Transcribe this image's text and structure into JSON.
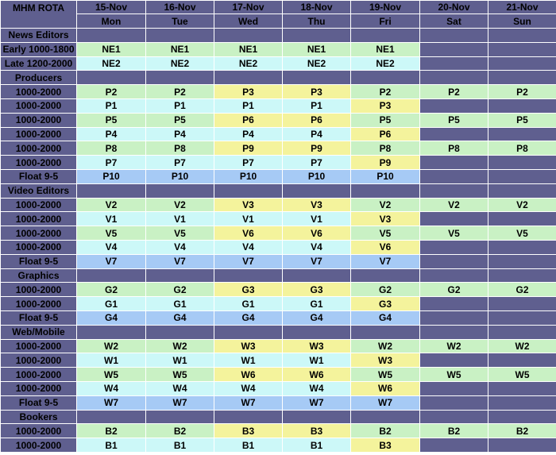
{
  "title": "MHM ROTA",
  "dates": [
    "15-Nov",
    "16-Nov",
    "17-Nov",
    "18-Nov",
    "19-Nov",
    "20-Nov",
    "21-Nov"
  ],
  "days": [
    "Mon",
    "Tue",
    "Wed",
    "Thu",
    "Fri",
    "Sat",
    "Sun"
  ],
  "colors": {
    "header": "#5f5f8f",
    "section": "#5f5f8f",
    "green": "#c9f1c4",
    "cyan": "#ccf8f8",
    "yellow": "#f4f39c",
    "blue": "#a6caf5",
    "empty": "#5f5f8f"
  },
  "rows": [
    {
      "label": "News Editors",
      "section": true
    },
    {
      "label": "Early 1000-1800",
      "cells": [
        [
          "NE1",
          "g"
        ],
        [
          "NE1",
          "g"
        ],
        [
          "NE1",
          "g"
        ],
        [
          "NE1",
          "g"
        ],
        [
          "NE1",
          "g"
        ],
        [
          "",
          "n"
        ],
        [
          "",
          "n"
        ]
      ]
    },
    {
      "label": "Late 1200-2000",
      "cells": [
        [
          "NE2",
          "c"
        ],
        [
          "NE2",
          "c"
        ],
        [
          "NE2",
          "c"
        ],
        [
          "NE2",
          "c"
        ],
        [
          "NE2",
          "c"
        ],
        [
          "",
          "n"
        ],
        [
          "",
          "n"
        ]
      ]
    },
    {
      "label": "Producers",
      "section": true
    },
    {
      "label": "1000-2000",
      "cells": [
        [
          "P2",
          "g"
        ],
        [
          "P2",
          "g"
        ],
        [
          "P3",
          "y"
        ],
        [
          "P3",
          "y"
        ],
        [
          "P2",
          "g"
        ],
        [
          "P2",
          "g"
        ],
        [
          "P2",
          "g"
        ]
      ]
    },
    {
      "label": "1000-2000",
      "cells": [
        [
          "P1",
          "c"
        ],
        [
          "P1",
          "c"
        ],
        [
          "P1",
          "c"
        ],
        [
          "P1",
          "c"
        ],
        [
          "P3",
          "y"
        ],
        [
          "",
          "n"
        ],
        [
          "",
          "n"
        ]
      ]
    },
    {
      "label": "1000-2000",
      "cells": [
        [
          "P5",
          "g"
        ],
        [
          "P5",
          "g"
        ],
        [
          "P6",
          "y"
        ],
        [
          "P6",
          "y"
        ],
        [
          "P5",
          "g"
        ],
        [
          "P5",
          "g"
        ],
        [
          "P5",
          "g"
        ]
      ]
    },
    {
      "label": "1000-2000",
      "cells": [
        [
          "P4",
          "c"
        ],
        [
          "P4",
          "c"
        ],
        [
          "P4",
          "c"
        ],
        [
          "P4",
          "c"
        ],
        [
          "P6",
          "y"
        ],
        [
          "",
          "n"
        ],
        [
          "",
          "n"
        ]
      ]
    },
    {
      "label": "1000-2000",
      "cells": [
        [
          "P8",
          "g"
        ],
        [
          "P8",
          "g"
        ],
        [
          "P9",
          "y"
        ],
        [
          "P9",
          "y"
        ],
        [
          "P8",
          "g"
        ],
        [
          "P8",
          "g"
        ],
        [
          "P8",
          "g"
        ]
      ]
    },
    {
      "label": "1000-2000",
      "cells": [
        [
          "P7",
          "c"
        ],
        [
          "P7",
          "c"
        ],
        [
          "P7",
          "c"
        ],
        [
          "P7",
          "c"
        ],
        [
          "P9",
          "y"
        ],
        [
          "",
          "n"
        ],
        [
          "",
          "n"
        ]
      ]
    },
    {
      "label": "Float 9-5",
      "cells": [
        [
          "P10",
          "b"
        ],
        [
          "P10",
          "b"
        ],
        [
          "P10",
          "b"
        ],
        [
          "P10",
          "b"
        ],
        [
          "P10",
          "b"
        ],
        [
          "",
          "n"
        ],
        [
          "",
          "n"
        ]
      ]
    },
    {
      "label": "Video Editors",
      "section": true
    },
    {
      "label": "1000-2000",
      "cells": [
        [
          "V2",
          "g"
        ],
        [
          "V2",
          "g"
        ],
        [
          "V3",
          "y"
        ],
        [
          "V3",
          "y"
        ],
        [
          "V2",
          "g"
        ],
        [
          "V2",
          "g"
        ],
        [
          "V2",
          "g"
        ]
      ]
    },
    {
      "label": "1000-2000",
      "cells": [
        [
          "V1",
          "c"
        ],
        [
          "V1",
          "c"
        ],
        [
          "V1",
          "c"
        ],
        [
          "V1",
          "c"
        ],
        [
          "V3",
          "y"
        ],
        [
          "",
          "n"
        ],
        [
          "",
          "n"
        ]
      ]
    },
    {
      "label": "1000-2000",
      "cells": [
        [
          "V5",
          "g"
        ],
        [
          "V5",
          "g"
        ],
        [
          "V6",
          "y"
        ],
        [
          "V6",
          "y"
        ],
        [
          "V5",
          "g"
        ],
        [
          "V5",
          "g"
        ],
        [
          "V5",
          "g"
        ]
      ]
    },
    {
      "label": "1000-2000",
      "cells": [
        [
          "V4",
          "c"
        ],
        [
          "V4",
          "c"
        ],
        [
          "V4",
          "c"
        ],
        [
          "V4",
          "c"
        ],
        [
          "V6",
          "y"
        ],
        [
          "",
          "n"
        ],
        [
          "",
          "n"
        ]
      ]
    },
    {
      "label": "Float 9-5",
      "cells": [
        [
          "V7",
          "b"
        ],
        [
          "V7",
          "b"
        ],
        [
          "V7",
          "b"
        ],
        [
          "V7",
          "b"
        ],
        [
          "V7",
          "b"
        ],
        [
          "",
          "n"
        ],
        [
          "",
          "n"
        ]
      ]
    },
    {
      "label": "Graphics",
      "section": true
    },
    {
      "label": "1000-2000",
      "cells": [
        [
          "G2",
          "g"
        ],
        [
          "G2",
          "g"
        ],
        [
          "G3",
          "y"
        ],
        [
          "G3",
          "y"
        ],
        [
          "G2",
          "g"
        ],
        [
          "G2",
          "g"
        ],
        [
          "G2",
          "g"
        ]
      ]
    },
    {
      "label": "1000-2000",
      "cells": [
        [
          "G1",
          "c"
        ],
        [
          "G1",
          "c"
        ],
        [
          "G1",
          "c"
        ],
        [
          "G1",
          "c"
        ],
        [
          "G3",
          "y"
        ],
        [
          "",
          "n"
        ],
        [
          "",
          "n"
        ]
      ]
    },
    {
      "label": "Float 9-5",
      "cells": [
        [
          "G4",
          "b"
        ],
        [
          "G4",
          "b"
        ],
        [
          "G4",
          "b"
        ],
        [
          "G4",
          "b"
        ],
        [
          "G4",
          "b"
        ],
        [
          "",
          "n"
        ],
        [
          "",
          "n"
        ]
      ]
    },
    {
      "label": "Web/Mobile",
      "section": true
    },
    {
      "label": "1000-2000",
      "cells": [
        [
          "W2",
          "g"
        ],
        [
          "W2",
          "g"
        ],
        [
          "W3",
          "y"
        ],
        [
          "W3",
          "y"
        ],
        [
          "W2",
          "g"
        ],
        [
          "W2",
          "g"
        ],
        [
          "W2",
          "g"
        ]
      ]
    },
    {
      "label": "1000-2000",
      "cells": [
        [
          "W1",
          "c"
        ],
        [
          "W1",
          "c"
        ],
        [
          "W1",
          "c"
        ],
        [
          "W1",
          "c"
        ],
        [
          "W3",
          "y"
        ],
        [
          "",
          "n"
        ],
        [
          "",
          "n"
        ]
      ]
    },
    {
      "label": "1000-2000",
      "cells": [
        [
          "W5",
          "g"
        ],
        [
          "W5",
          "g"
        ],
        [
          "W6",
          "y"
        ],
        [
          "W6",
          "y"
        ],
        [
          "W5",
          "g"
        ],
        [
          "W5",
          "g"
        ],
        [
          "W5",
          "g"
        ]
      ]
    },
    {
      "label": "1000-2000",
      "cells": [
        [
          "W4",
          "c"
        ],
        [
          "W4",
          "c"
        ],
        [
          "W4",
          "c"
        ],
        [
          "W4",
          "c"
        ],
        [
          "W6",
          "y"
        ],
        [
          "",
          "n"
        ],
        [
          "",
          "n"
        ]
      ]
    },
    {
      "label": "Float 9-5",
      "cells": [
        [
          "W7",
          "b"
        ],
        [
          "W7",
          "b"
        ],
        [
          "W7",
          "b"
        ],
        [
          "W7",
          "b"
        ],
        [
          "W7",
          "b"
        ],
        [
          "",
          "n"
        ],
        [
          "",
          "n"
        ]
      ]
    },
    {
      "label": "Bookers",
      "section": true
    },
    {
      "label": "1000-2000",
      "cells": [
        [
          "B2",
          "g"
        ],
        [
          "B2",
          "g"
        ],
        [
          "B3",
          "y"
        ],
        [
          "B3",
          "y"
        ],
        [
          "B2",
          "g"
        ],
        [
          "B2",
          "g"
        ],
        [
          "B2",
          "g"
        ]
      ]
    },
    {
      "label": "1000-2000",
      "cells": [
        [
          "B1",
          "c"
        ],
        [
          "B1",
          "c"
        ],
        [
          "B1",
          "c"
        ],
        [
          "B1",
          "c"
        ],
        [
          "B3",
          "y"
        ],
        [
          "",
          "n"
        ],
        [
          "",
          "n"
        ]
      ]
    }
  ]
}
